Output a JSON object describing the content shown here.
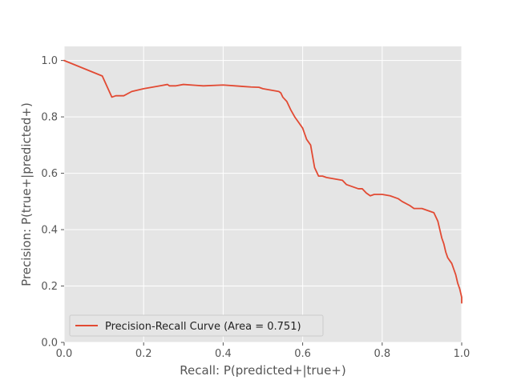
{
  "chart_data": {
    "type": "line",
    "title": "",
    "xlabel": "Recall: P(predicted+|true+)",
    "ylabel": "Precision: P(true+|predicted+)",
    "xlim": [
      0.0,
      1.0
    ],
    "ylim": [
      0.0,
      1.05
    ],
    "grid": true,
    "legend_position": "lower-left",
    "x_ticks": [
      "0.0",
      "0.2",
      "0.4",
      "0.6",
      "0.8",
      "1.0"
    ],
    "y_ticks": [
      "0.0",
      "0.2",
      "0.4",
      "0.6",
      "0.8",
      "1.0"
    ],
    "series": [
      {
        "name": "Precision-Recall Curve  (Area = 0.751)",
        "color": "#e24a33",
        "x": [
          0.0,
          0.096,
          0.12,
          0.13,
          0.15,
          0.17,
          0.2,
          0.22,
          0.24,
          0.26,
          0.265,
          0.28,
          0.3,
          0.33,
          0.35,
          0.4,
          0.43,
          0.45,
          0.47,
          0.49,
          0.5,
          0.52,
          0.54,
          0.545,
          0.55,
          0.56,
          0.565,
          0.57,
          0.58,
          0.59,
          0.6,
          0.605,
          0.61,
          0.62,
          0.625,
          0.63,
          0.635,
          0.64,
          0.65,
          0.66,
          0.68,
          0.7,
          0.71,
          0.72,
          0.73,
          0.74,
          0.75,
          0.76,
          0.77,
          0.78,
          0.8,
          0.82,
          0.84,
          0.85,
          0.87,
          0.88,
          0.89,
          0.9,
          0.91,
          0.93,
          0.94,
          0.945,
          0.95,
          0.955,
          0.96,
          0.965,
          0.97,
          0.975,
          0.98,
          0.985,
          0.99,
          0.995,
          1.0,
          1.0
        ],
        "y": [
          1.0,
          0.945,
          0.87,
          0.875,
          0.875,
          0.89,
          0.9,
          0.905,
          0.91,
          0.915,
          0.91,
          0.91,
          0.915,
          0.912,
          0.91,
          0.913,
          0.91,
          0.908,
          0.906,
          0.905,
          0.9,
          0.895,
          0.89,
          0.885,
          0.87,
          0.855,
          0.84,
          0.825,
          0.8,
          0.78,
          0.76,
          0.74,
          0.72,
          0.7,
          0.66,
          0.62,
          0.605,
          0.59,
          0.59,
          0.585,
          0.58,
          0.575,
          0.56,
          0.555,
          0.55,
          0.545,
          0.545,
          0.53,
          0.52,
          0.525,
          0.525,
          0.52,
          0.51,
          0.5,
          0.485,
          0.475,
          0.475,
          0.475,
          0.47,
          0.46,
          0.43,
          0.4,
          0.37,
          0.35,
          0.32,
          0.3,
          0.29,
          0.28,
          0.26,
          0.24,
          0.21,
          0.19,
          0.16,
          0.14
        ]
      }
    ]
  }
}
